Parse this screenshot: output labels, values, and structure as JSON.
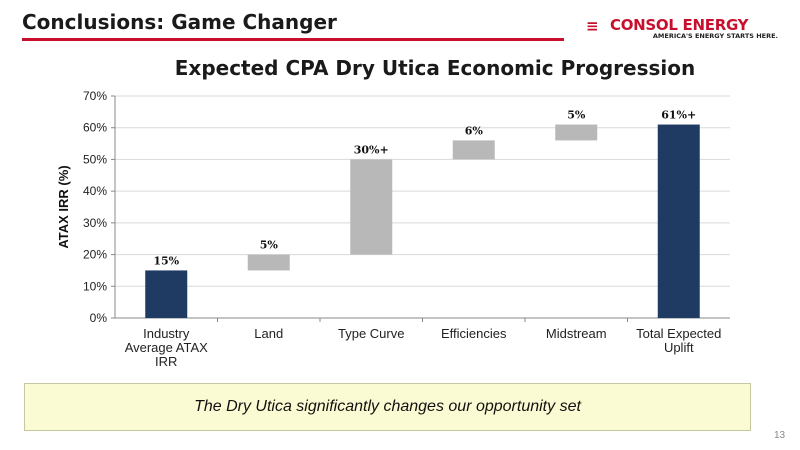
{
  "slide": {
    "title": "Conclusions: Game Changer",
    "page_number": "13",
    "callout": "The Dry Utica significantly changes our opportunity set"
  },
  "logo": {
    "name": "CONSOL ENERGY",
    "tagline": "AMERICA'S ENERGY STARTS HERE."
  },
  "colors": {
    "accent_red": "#c8102e",
    "bar_total": "#1f3b63",
    "bar_increment": "#b8b8b8",
    "callout_bg": "#fbfbd3"
  },
  "chart_data": {
    "type": "bar",
    "subtype": "waterfall",
    "title": "Expected CPA Dry Utica Economic Progression",
    "ylabel": "ATAX IRR (%)",
    "xlabel": "",
    "ylim": [
      0,
      70
    ],
    "ytick_labels": [
      "0%",
      "10%",
      "20%",
      "30%",
      "40%",
      "50%",
      "60%",
      "70%"
    ],
    "gridlines": true,
    "categories": [
      [
        "Industry",
        "Average ATAX",
        "IRR"
      ],
      [
        "Land"
      ],
      [
        "Type Curve"
      ],
      [
        "Efficiencies"
      ],
      [
        "Midstream"
      ],
      [
        "Total Expected",
        "Uplift"
      ]
    ],
    "bars": [
      {
        "kind": "total",
        "start": 0,
        "end": 15,
        "label": "15%"
      },
      {
        "kind": "increment",
        "start": 15,
        "end": 20,
        "label": "5%"
      },
      {
        "kind": "increment",
        "start": 20,
        "end": 50,
        "label": "30%+"
      },
      {
        "kind": "increment",
        "start": 50,
        "end": 56,
        "label": "6%"
      },
      {
        "kind": "increment",
        "start": 56,
        "end": 61,
        "label": "5%"
      },
      {
        "kind": "total",
        "start": 0,
        "end": 61,
        "label": "61%+"
      }
    ]
  }
}
